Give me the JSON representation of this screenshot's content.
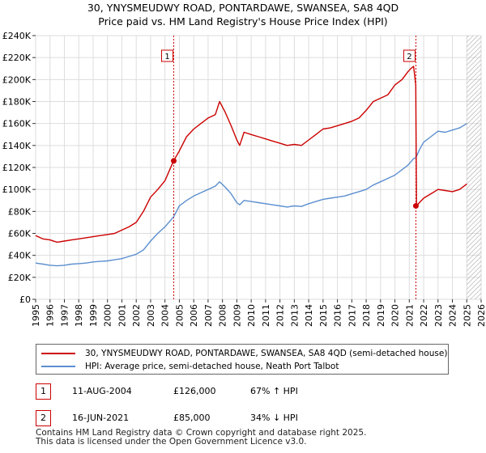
{
  "chart_data": {
    "type": "line",
    "title": "30, YNYSMEUDWY ROAD, PONTARDAWE, SWANSEA, SA8 4QD",
    "subtitle": "Price paid vs. HM Land Registry's House Price Index (HPI)",
    "xlim": [
      1995,
      2026
    ],
    "ylim": [
      0,
      240000
    ],
    "x_ticks": [
      "1995",
      "1996",
      "1997",
      "1998",
      "1999",
      "2000",
      "2001",
      "2002",
      "2003",
      "2004",
      "2005",
      "2006",
      "2007",
      "2008",
      "2009",
      "2010",
      "2011",
      "2012",
      "2013",
      "2014",
      "2015",
      "2016",
      "2017",
      "2018",
      "2019",
      "2020",
      "2021",
      "2022",
      "2023",
      "2024",
      "2025",
      "2026"
    ],
    "y_ticks": [
      {
        "value": 0,
        "label": "£0"
      },
      {
        "value": 20000,
        "label": "£20K"
      },
      {
        "value": 40000,
        "label": "£40K"
      },
      {
        "value": 60000,
        "label": "£60K"
      },
      {
        "value": 80000,
        "label": "£80K"
      },
      {
        "value": 100000,
        "label": "£100K"
      },
      {
        "value": 120000,
        "label": "£120K"
      },
      {
        "value": 140000,
        "label": "£140K"
      },
      {
        "value": 160000,
        "label": "£160K"
      },
      {
        "value": 180000,
        "label": "£180K"
      },
      {
        "value": 200000,
        "label": "£200K"
      },
      {
        "value": 220000,
        "label": "£220K"
      },
      {
        "value": 240000,
        "label": "£240K"
      }
    ],
    "grid": true,
    "series": [
      {
        "name": "30, YNYSMEUDWY ROAD, PONTARDAWE, SWANSEA, SA8 4QD (semi-detached house)",
        "color": "#cc0000",
        "x": [
          1995.0,
          1995.5,
          1996.0,
          1996.5,
          1997.0,
          1997.5,
          1998.0,
          1998.5,
          1999.0,
          1999.5,
          2000.0,
          2000.5,
          2001.0,
          2001.5,
          2002.0,
          2002.5,
          2003.0,
          2003.5,
          2004.0,
          2004.6,
          2005.0,
          2005.5,
          2006.0,
          2006.5,
          2007.0,
          2007.5,
          2007.8,
          2008.2,
          2008.6,
          2009.0,
          2009.2,
          2009.5,
          2010.0,
          2010.5,
          2011.0,
          2011.5,
          2012.0,
          2012.5,
          2013.0,
          2013.5,
          2014.0,
          2014.5,
          2015.0,
          2015.5,
          2016.0,
          2016.5,
          2017.0,
          2017.5,
          2018.0,
          2018.5,
          2019.0,
          2019.5,
          2020.0,
          2020.5,
          2020.9,
          2021.1,
          2021.3,
          2021.45,
          2021.5,
          2021.7,
          2022.0,
          2022.5,
          2023.0,
          2023.5,
          2024.0,
          2024.5,
          2025.0
        ],
        "y": [
          58000,
          55000,
          54000,
          52000,
          53000,
          54000,
          55000,
          56000,
          57000,
          58000,
          59000,
          60000,
          63000,
          66000,
          70000,
          80000,
          93000,
          100000,
          108000,
          126000,
          135000,
          148000,
          155000,
          160000,
          165000,
          168000,
          180000,
          170000,
          158000,
          145000,
          140000,
          152000,
          150000,
          148000,
          146000,
          144000,
          142000,
          140000,
          141000,
          140000,
          145000,
          150000,
          155000,
          156000,
          158000,
          160000,
          162000,
          165000,
          172000,
          180000,
          183000,
          186000,
          195000,
          200000,
          207000,
          210000,
          212000,
          195000,
          85000,
          88000,
          92000,
          96000,
          100000,
          99000,
          98000,
          100000,
          105000
        ]
      },
      {
        "name": "HPI: Average price, semi-detached house, Neath Port Talbot",
        "color": "#5b8fcf",
        "x": [
          1995.0,
          1995.5,
          1996.0,
          1996.5,
          1997.0,
          1997.5,
          1998.0,
          1998.5,
          1999.0,
          1999.5,
          2000.0,
          2000.5,
          2001.0,
          2001.5,
          2002.0,
          2002.5,
          2003.0,
          2003.5,
          2004.0,
          2004.6,
          2005.0,
          2005.5,
          2006.0,
          2006.5,
          2007.0,
          2007.5,
          2007.8,
          2008.2,
          2008.6,
          2009.0,
          2009.2,
          2009.5,
          2010.0,
          2010.5,
          2011.0,
          2011.5,
          2012.0,
          2012.5,
          2013.0,
          2013.5,
          2014.0,
          2014.5,
          2015.0,
          2015.5,
          2016.0,
          2016.5,
          2017.0,
          2017.5,
          2018.0,
          2018.5,
          2019.0,
          2019.5,
          2020.0,
          2020.5,
          2020.9,
          2021.1,
          2021.3,
          2021.45,
          2021.5,
          2021.7,
          2022.0,
          2022.5,
          2023.0,
          2023.5,
          2024.0,
          2024.5,
          2025.0
        ],
        "y": [
          33000,
          32000,
          31000,
          30500,
          31000,
          32000,
          32500,
          33000,
          34000,
          34500,
          35000,
          36000,
          37000,
          39000,
          41000,
          45000,
          53000,
          60000,
          66000,
          75000,
          85000,
          90000,
          94000,
          97000,
          100000,
          103000,
          107000,
          102000,
          96000,
          88000,
          86000,
          90000,
          89000,
          88000,
          87000,
          86000,
          85000,
          84000,
          85000,
          84500,
          87000,
          89000,
          91000,
          92000,
          93000,
          94000,
          96000,
          98000,
          100000,
          104000,
          107000,
          110000,
          113000,
          118000,
          122000,
          125000,
          128000,
          129000,
          130000,
          136000,
          143000,
          148000,
          153000,
          152000,
          154000,
          156000,
          160000
        ]
      }
    ],
    "sales": [
      {
        "id": "1",
        "x": 2004.61,
        "y": 126000,
        "date": "11-AUG-2004",
        "price": "£126,000",
        "hpi": "67% ↑ HPI"
      },
      {
        "id": "2",
        "x": 2021.46,
        "y": 85000,
        "date": "16-JUN-2021",
        "price": "£85,000",
        "hpi": "34% ↓ HPI"
      }
    ],
    "hatch_from": 2025.0
  },
  "legend": {
    "red_label": "30, YNYSMEUDWY ROAD, PONTARDAWE, SWANSEA, SA8 4QD (semi-detached house)",
    "blue_label": "HPI: Average price, semi-detached house, Neath Port Talbot"
  },
  "footer": {
    "line1": "Contains HM Land Registry data © Crown copyright and database right 2025.",
    "line2": "This data is licensed under the Open Government Licence v3.0."
  }
}
